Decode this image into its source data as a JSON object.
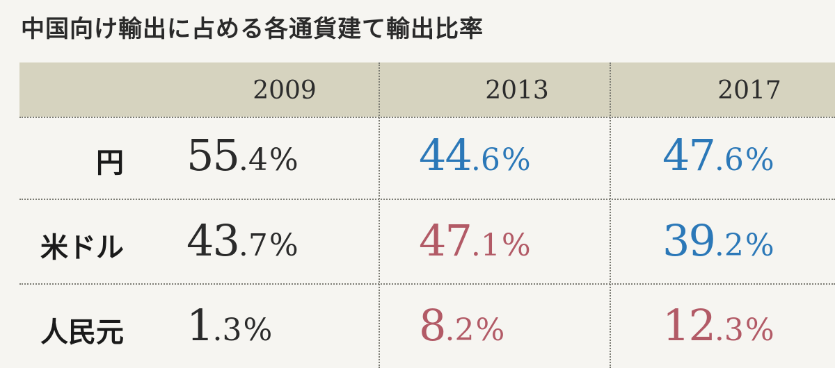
{
  "title": "中国向け輸出に占める各通貨建て輸出比率",
  "colors": {
    "black": "#2a2a2a",
    "blue": "#2b78b8",
    "red": "#b25a66",
    "header_band": "#d6d3bf",
    "background": "#f6f5f1"
  },
  "chart_data": {
    "type": "table",
    "title": "中国向け輸出に占める各通貨建て輸出比率",
    "columns": [
      "2009",
      "2013",
      "2017"
    ],
    "rows": [
      {
        "label": "円",
        "cells": [
          {
            "int": "55",
            "dec": ".4",
            "pct": "%",
            "value": 55.4,
            "color": "black"
          },
          {
            "int": "44",
            "dec": ".6",
            "pct": "%",
            "value": 44.6,
            "color": "blue"
          },
          {
            "int": "47",
            "dec": ".6",
            "pct": "%",
            "value": 47.6,
            "color": "blue"
          }
        ]
      },
      {
        "label": "米ドル",
        "cells": [
          {
            "int": "43",
            "dec": ".7",
            "pct": "%",
            "value": 43.7,
            "color": "black"
          },
          {
            "int": "47",
            "dec": ".1",
            "pct": "%",
            "value": 47.1,
            "color": "red"
          },
          {
            "int": "39",
            "dec": ".2",
            "pct": "%",
            "value": 39.2,
            "color": "blue"
          }
        ]
      },
      {
        "label": "人民元",
        "cells": [
          {
            "int": "1",
            "dec": ".3",
            "pct": "%",
            "value": 1.3,
            "color": "black"
          },
          {
            "int": "8",
            "dec": ".2",
            "pct": "%",
            "value": 8.2,
            "color": "red"
          },
          {
            "int": "12",
            "dec": ".3",
            "pct": "%",
            "value": 12.3,
            "color": "red"
          }
        ]
      }
    ]
  }
}
